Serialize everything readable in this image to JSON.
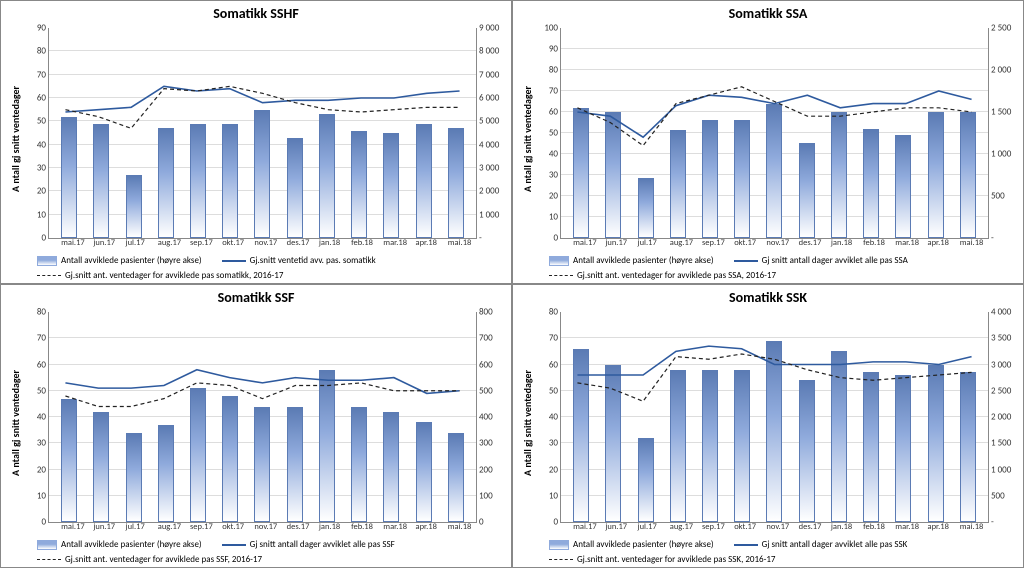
{
  "categories": [
    "mai.17",
    "jun.17",
    "jul.17",
    "aug.17",
    "sep.17",
    "okt.17",
    "nov.17",
    "des.17",
    "jan.18",
    "feb.18",
    "mar.18",
    "apr.18",
    "mai.18"
  ],
  "panels": [
    {
      "id": "sshf",
      "title": "Somatikk SSHF",
      "ylabel": "A ntall gj snitt ventedager",
      "ylim": [
        0,
        90
      ],
      "ytick_step": 10,
      "y2lim": [
        0,
        9000
      ],
      "y2tick_step": 1000,
      "y2_format": "space",
      "bar_max": 9000,
      "bars": [
        5200,
        4900,
        2700,
        4700,
        4900,
        4900,
        5500,
        4300,
        5300,
        4600,
        4500,
        4900,
        4700
      ],
      "line_max": 90,
      "line": [
        54,
        55,
        56,
        65,
        63,
        64,
        58,
        59,
        59,
        60,
        60,
        62,
        63
      ],
      "dash": [
        55,
        52,
        47,
        64,
        63,
        65,
        62,
        58,
        55,
        54,
        55,
        56,
        56
      ],
      "legend": {
        "bars": "Antall avviklede pasienter (høyre akse)",
        "line": "Gj.snitt ventetid avv. pas. somatikk",
        "dash": "Gj.snitt ant. ventedager for avviklede pas somatikk, 2016-17"
      }
    },
    {
      "id": "ssa",
      "title": "Somatikk SSA",
      "ylabel": "A ntall gj snitt ventedager",
      "ylim": [
        0,
        100
      ],
      "ytick_step": 10,
      "y2lim": [
        0,
        2500
      ],
      "y2tick_step": 500,
      "y2_format": "space",
      "bar_max": 2500,
      "bars": [
        1550,
        1500,
        720,
        1280,
        1400,
        1400,
        1600,
        1130,
        1500,
        1300,
        1230,
        1500,
        1500
      ],
      "line_max": 100,
      "line": [
        60,
        58,
        48,
        63,
        68,
        67,
        64,
        68,
        62,
        64,
        64,
        70,
        66
      ],
      "dash": [
        62,
        55,
        44,
        64,
        68,
        72,
        65,
        58,
        58,
        60,
        62,
        62,
        60
      ],
      "legend": {
        "bars": "Antall avviklede pasienter (høyre akse)",
        "line": "Gj snitt antall dager avviklet alle pas SSA",
        "dash": "Gj.snitt ant. ventedager for avviklede pas SSA, 2016-17"
      }
    },
    {
      "id": "ssf",
      "title": "Somatikk SSF",
      "ylabel": "A ntall gj snitt ventedager",
      "ylim": [
        0,
        80
      ],
      "ytick_step": 10,
      "y2lim": [
        0,
        800
      ],
      "y2tick_step": 100,
      "y2_format": "plain",
      "bar_max": 800,
      "bars": [
        470,
        420,
        340,
        370,
        510,
        480,
        440,
        440,
        580,
        440,
        420,
        380,
        340
      ],
      "line_max": 80,
      "line": [
        53,
        51,
        51,
        52,
        58,
        55,
        53,
        55,
        54,
        54,
        55,
        49,
        50
      ],
      "dash": [
        48,
        44,
        44,
        47,
        53,
        52,
        47,
        52,
        52,
        53,
        50,
        50,
        50
      ],
      "legend": {
        "bars": "Antall avviklede pasienter (høyre akse)",
        "line": "Gj snitt antall dager avviklet alle pas SSF",
        "dash": "Gj.snitt ant. ventedager for avviklede pas SSF, 2016-17"
      }
    },
    {
      "id": "ssk",
      "title": "Somatikk SSK",
      "ylabel": "A ntall gj snitt ventedager",
      "ylim": [
        0,
        80
      ],
      "ytick_step": 10,
      "y2lim": [
        0,
        4000
      ],
      "y2tick_step": 500,
      "y2_format": "space",
      "bar_max": 4000,
      "bars": [
        3300,
        3000,
        1600,
        2900,
        2900,
        2900,
        3450,
        2700,
        3250,
        2850,
        2800,
        3000,
        2850
      ],
      "line_max": 80,
      "line": [
        56,
        56,
        56,
        65,
        67,
        66,
        60,
        60,
        60,
        61,
        61,
        60,
        63
      ],
      "dash": [
        53,
        51,
        46,
        63,
        62,
        64,
        62,
        58,
        55,
        54,
        55,
        56,
        57
      ],
      "legend": {
        "bars": "Antall avviklede pasienter (høyre akse)",
        "line": "Gj snitt antall dager avviklet alle pas SSK",
        "dash": "Gj.snitt ant. ventedager for avviklede pas SSK, 2016-17"
      }
    }
  ],
  "colors": {
    "bar_edge": "#5b7bb4",
    "bar_fill_top": "#8faadc",
    "line": "#2e5a9e",
    "dash": "#222222",
    "grid": "#dddddd"
  }
}
